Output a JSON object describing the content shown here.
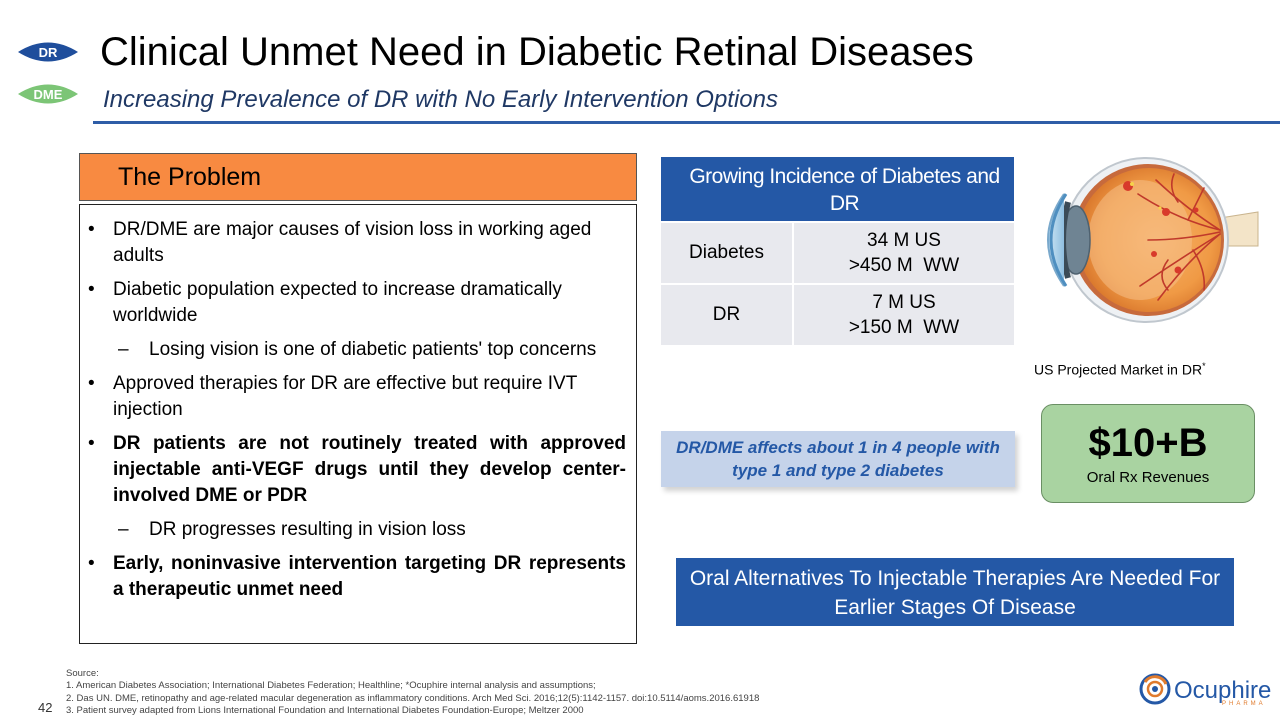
{
  "badges": {
    "dr": "DR",
    "dme": "DME"
  },
  "header": {
    "title": "Clinical Unmet Need in Diabetic Retinal Diseases",
    "subtitle": "Increasing Prevalence of DR with No Early Intervention Options"
  },
  "problem": {
    "heading": "The Problem",
    "bullets": [
      "DR/DME are major causes of vision loss in working aged adults",
      "Diabetic population expected to increase dramatically worldwide",
      "Losing vision is one of diabetic patients' top concerns",
      "Approved therapies for DR are effective but require IVT injection",
      "DR patients are not routinely treated with approved injectable anti-VEGF drugs until they develop center-involved DME or PDR",
      "DR progresses resulting in vision loss",
      "Early, noninvasive intervention targeting DR represents a therapeutic unmet need"
    ],
    "bullet_marker": "•",
    "sub_marker": "–"
  },
  "incidence_table": {
    "header": "Growing Incidence of Diabetes and DR",
    "rows": [
      {
        "label": "Diabetes",
        "us": "34 M US",
        "ww": ">450 M  WW"
      },
      {
        "label": "DR",
        "us": "7 M US",
        "ww": ">150 M  WW"
      }
    ]
  },
  "market": {
    "label": "US Projected Market in DR",
    "label_sup": "*",
    "value": "$10+B",
    "value_caption": "Oral Rx Revenues"
  },
  "affects_callout": "DR/DME affects about 1 in 4 people with type 1 and type 2 diabetes",
  "oral_callout": "Oral Alternatives To Injectable Therapies Are Needed For Earlier Stages Of Disease",
  "footer": {
    "page_number": "42",
    "source_lines": [
      "Source:",
      "1. American Diabetes Association; International Diabetes Federation; Healthline; *Ocuphire internal analysis and assumptions;",
      "2. Das UN. DME, retinopathy and age-related macular degeneration as inflammatory conditions. Arch Med Sci. 2016;12(5):1142-1157. doi:10.5114/aoms.2016.61918",
      "3. Patient survey adapted from Lions International Foundation and International Diabetes Foundation-Europe; Meltzer 2000"
    ],
    "logo_word": "Ocuphire",
    "logo_tag": "PHARMA"
  },
  "colors": {
    "brand_blue": "#2458a6",
    "problem_orange": "#f88a41",
    "market_green": "#a9d3a1",
    "dme_badge_green": "#7cc576",
    "dr_badge_blue": "#1f4e9c"
  }
}
